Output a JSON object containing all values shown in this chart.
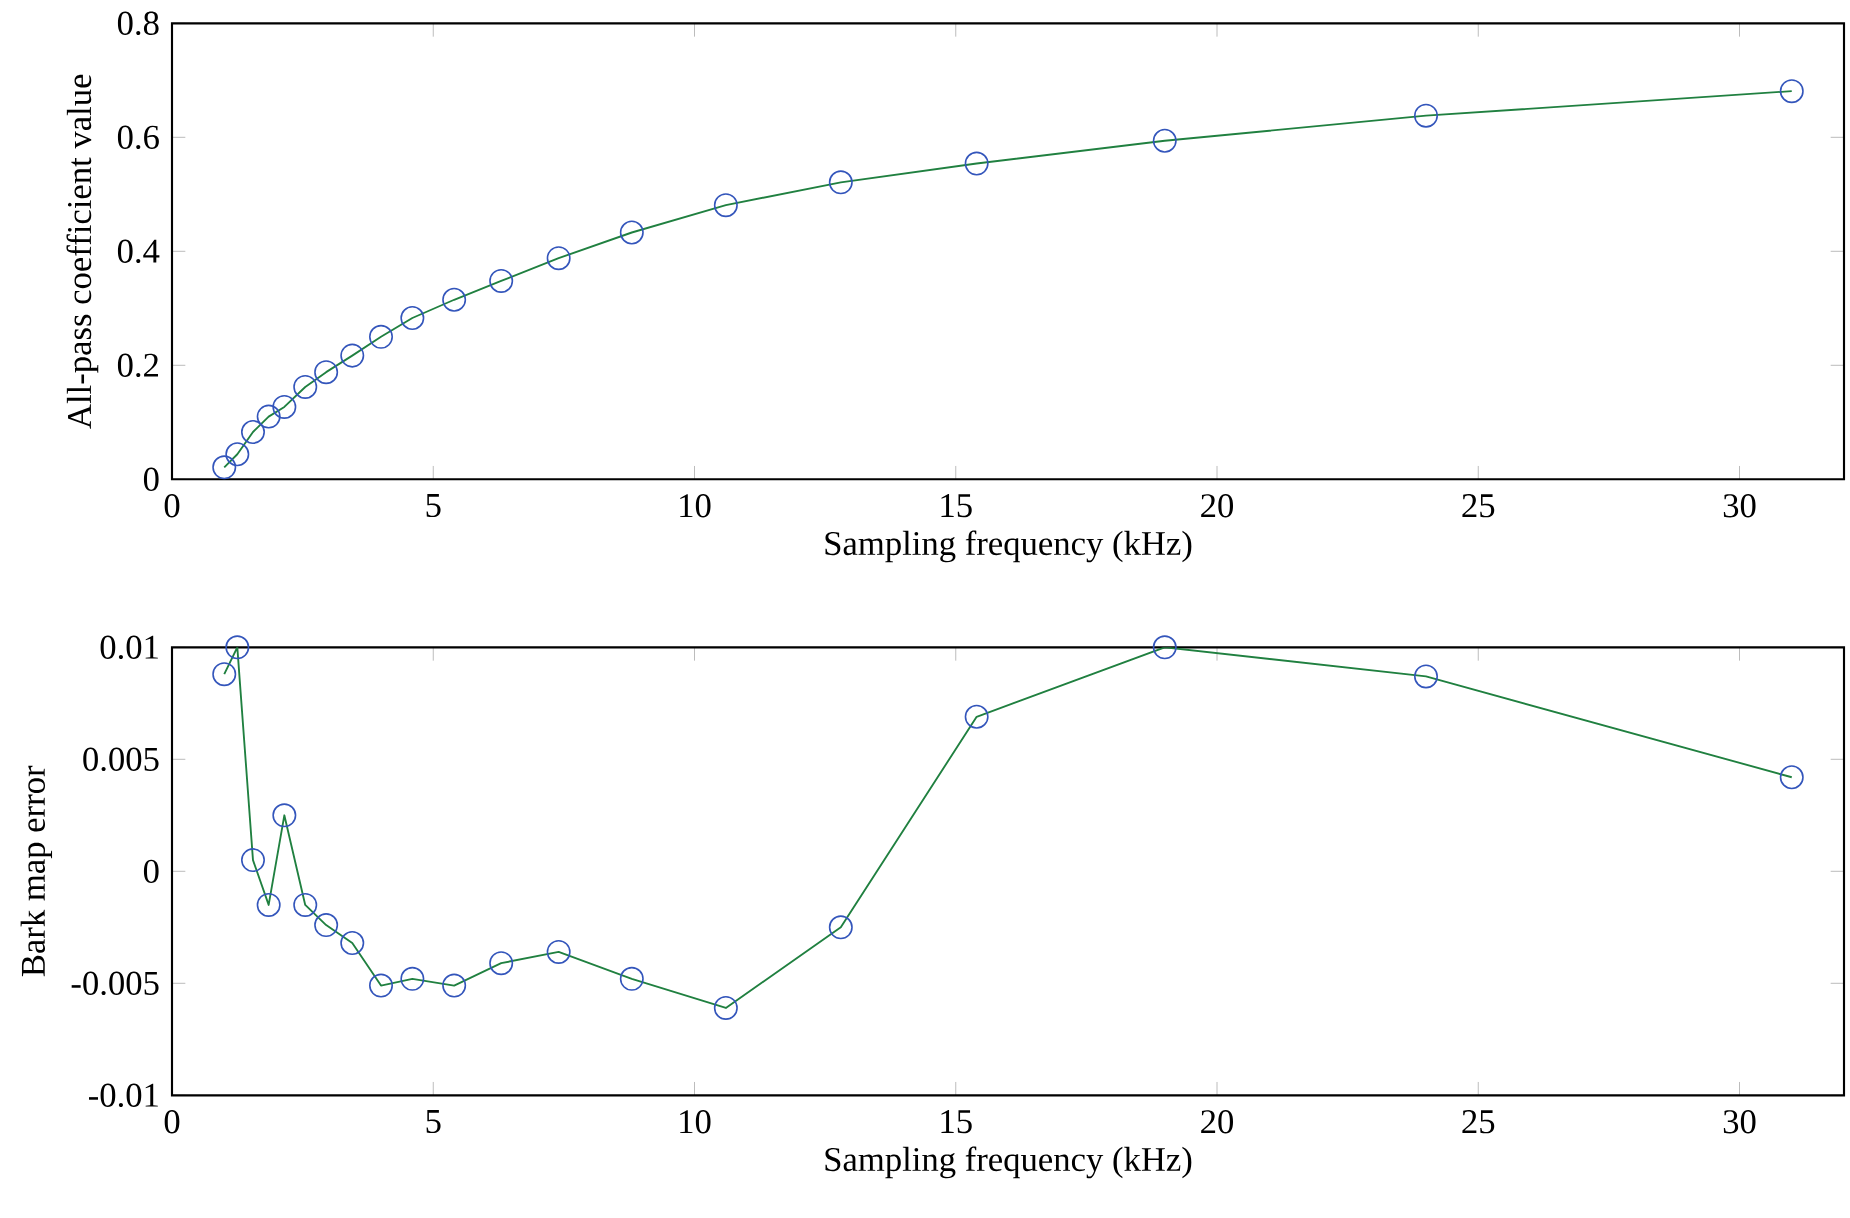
{
  "chart_data": [
    {
      "type": "line",
      "xlabel": "Sampling frequency (kHz)",
      "ylabel": "All-pass coefficient value",
      "xlim": [
        0,
        32
      ],
      "xticks": [
        0,
        5,
        10,
        15,
        20,
        25,
        30
      ],
      "ylim": [
        0,
        0.8
      ],
      "yticks": [
        0,
        0.2,
        0.4,
        0.6,
        0.8
      ],
      "x": [
        1.0,
        1.25,
        1.55,
        1.85,
        2.15,
        2.55,
        2.95,
        3.45,
        4.0,
        4.6,
        5.4,
        6.3,
        7.4,
        8.8,
        10.6,
        12.8,
        15.4,
        19.0,
        24.0,
        31.0
      ],
      "series": [
        {
          "color": "#208040",
          "marker": "none",
          "values": [
            0.021,
            0.044,
            0.083,
            0.11,
            0.127,
            0.162,
            0.188,
            0.217,
            0.25,
            0.283,
            0.315,
            0.348,
            0.388,
            0.433,
            0.481,
            0.521,
            0.554,
            0.594,
            0.638,
            0.681
          ]
        },
        {
          "type": "scatter",
          "color": "#3355bb",
          "marker": "circle",
          "values": [
            0.021,
            0.044,
            0.083,
            0.11,
            0.127,
            0.162,
            0.188,
            0.217,
            0.25,
            0.283,
            0.315,
            0.348,
            0.388,
            0.433,
            0.481,
            0.521,
            0.554,
            0.594,
            0.638,
            0.681
          ]
        }
      ]
    },
    {
      "type": "line",
      "xlabel": "Sampling frequency (kHz)",
      "ylabel": "Bark map error",
      "xlim": [
        0,
        32
      ],
      "xticks": [
        0,
        5,
        10,
        15,
        20,
        25,
        30
      ],
      "ylim": [
        -0.01,
        0.01
      ],
      "yticks": [
        -0.01,
        -0.005,
        0,
        0.005,
        0.01
      ],
      "x": [
        1.0,
        1.25,
        1.55,
        1.85,
        2.15,
        2.55,
        2.95,
        3.45,
        4.0,
        4.6,
        5.4,
        6.3,
        7.4,
        8.8,
        10.6,
        12.8,
        15.4,
        19.0,
        24.0,
        31.0
      ],
      "series": [
        {
          "color": "#208040",
          "marker": "none",
          "values": [
            0.0088,
            0.01,
            0.0005,
            -0.0015,
            0.0025,
            -0.0015,
            -0.0024,
            -0.0032,
            -0.0051,
            -0.0048,
            -0.0051,
            -0.0041,
            -0.0036,
            -0.0048,
            -0.0061,
            -0.0025,
            0.0069,
            0.01,
            0.0087,
            0.0042
          ]
        },
        {
          "type": "scatter",
          "color": "#3355bb",
          "marker": "circle",
          "values": [
            0.0088,
            0.01,
            0.0005,
            -0.0015,
            0.0025,
            -0.0015,
            -0.0024,
            -0.0032,
            -0.0051,
            -0.0048,
            -0.0051,
            -0.0041,
            -0.0036,
            -0.0048,
            -0.0061,
            -0.0025,
            0.0069,
            0.01,
            0.0087,
            0.0042
          ]
        }
      ]
    }
  ]
}
